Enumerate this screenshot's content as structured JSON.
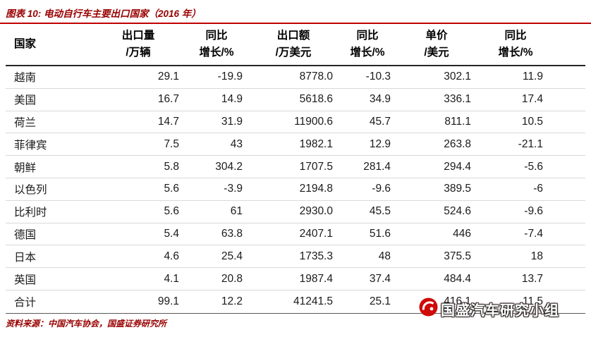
{
  "figure": {
    "title": "图表 10: 电动自行车主要出口国家（2016 年）",
    "source": "资料来源：中国汽车协会，国盛证券研究所"
  },
  "watermark": {
    "text": "国盛汽车研究小组",
    "logo": "guosheng-red-circle-logo"
  },
  "colors": {
    "title_text": "#990000",
    "title_rule": "#c00000",
    "header_rule": "#262626",
    "row_rule": "#d9d9d9",
    "watermark_logo": "#cf0a0a"
  },
  "table": {
    "header": {
      "country": "国家",
      "cols": [
        {
          "l1": "出口量",
          "l2": "/万辆"
        },
        {
          "l1": "同比",
          "l2": "增长/%"
        },
        {
          "l1": "出口额",
          "l2": "/万美元"
        },
        {
          "l1": "同比",
          "l2": "增长/%"
        },
        {
          "l1": "单价",
          "l2": "/美元"
        },
        {
          "l1": "同比",
          "l2": "增长/%"
        }
      ]
    },
    "rows": [
      {
        "country": "越南",
        "values": [
          "29.1",
          "-19.9",
          "8778.0",
          "-10.3",
          "302.1",
          "11.9"
        ]
      },
      {
        "country": "美国",
        "values": [
          "16.7",
          "14.9",
          "5618.6",
          "34.9",
          "336.1",
          "17.4"
        ]
      },
      {
        "country": "荷兰",
        "values": [
          "14.7",
          "31.9",
          "11900.6",
          "45.7",
          "811.1",
          "10.5"
        ]
      },
      {
        "country": "菲律宾",
        "values": [
          "7.5",
          "43",
          "1982.1",
          "12.9",
          "263.8",
          "-21.1"
        ]
      },
      {
        "country": "朝鲜",
        "values": [
          "5.8",
          "304.2",
          "1707.5",
          "281.4",
          "294.4",
          "-5.6"
        ]
      },
      {
        "country": "以色列",
        "values": [
          "5.6",
          "-3.9",
          "2194.8",
          "-9.6",
          "389.5",
          "-6"
        ]
      },
      {
        "country": "比利时",
        "values": [
          "5.6",
          "61",
          "2930.0",
          "45.5",
          "524.6",
          "-9.6"
        ]
      },
      {
        "country": "德国",
        "values": [
          "5.4",
          "63.8",
          "2407.1",
          "51.6",
          "446",
          "-7.4"
        ]
      },
      {
        "country": "日本",
        "values": [
          "4.6",
          "25.4",
          "1735.3",
          "48",
          "375.5",
          "18"
        ]
      },
      {
        "country": "英国",
        "values": [
          "4.1",
          "20.8",
          "1987.4",
          "37.4",
          "484.4",
          "13.7"
        ]
      },
      {
        "country": "合计",
        "values": [
          "99.1",
          "12.2",
          "41241.5",
          "25.1",
          "416.1",
          "11.5"
        ]
      }
    ]
  }
}
